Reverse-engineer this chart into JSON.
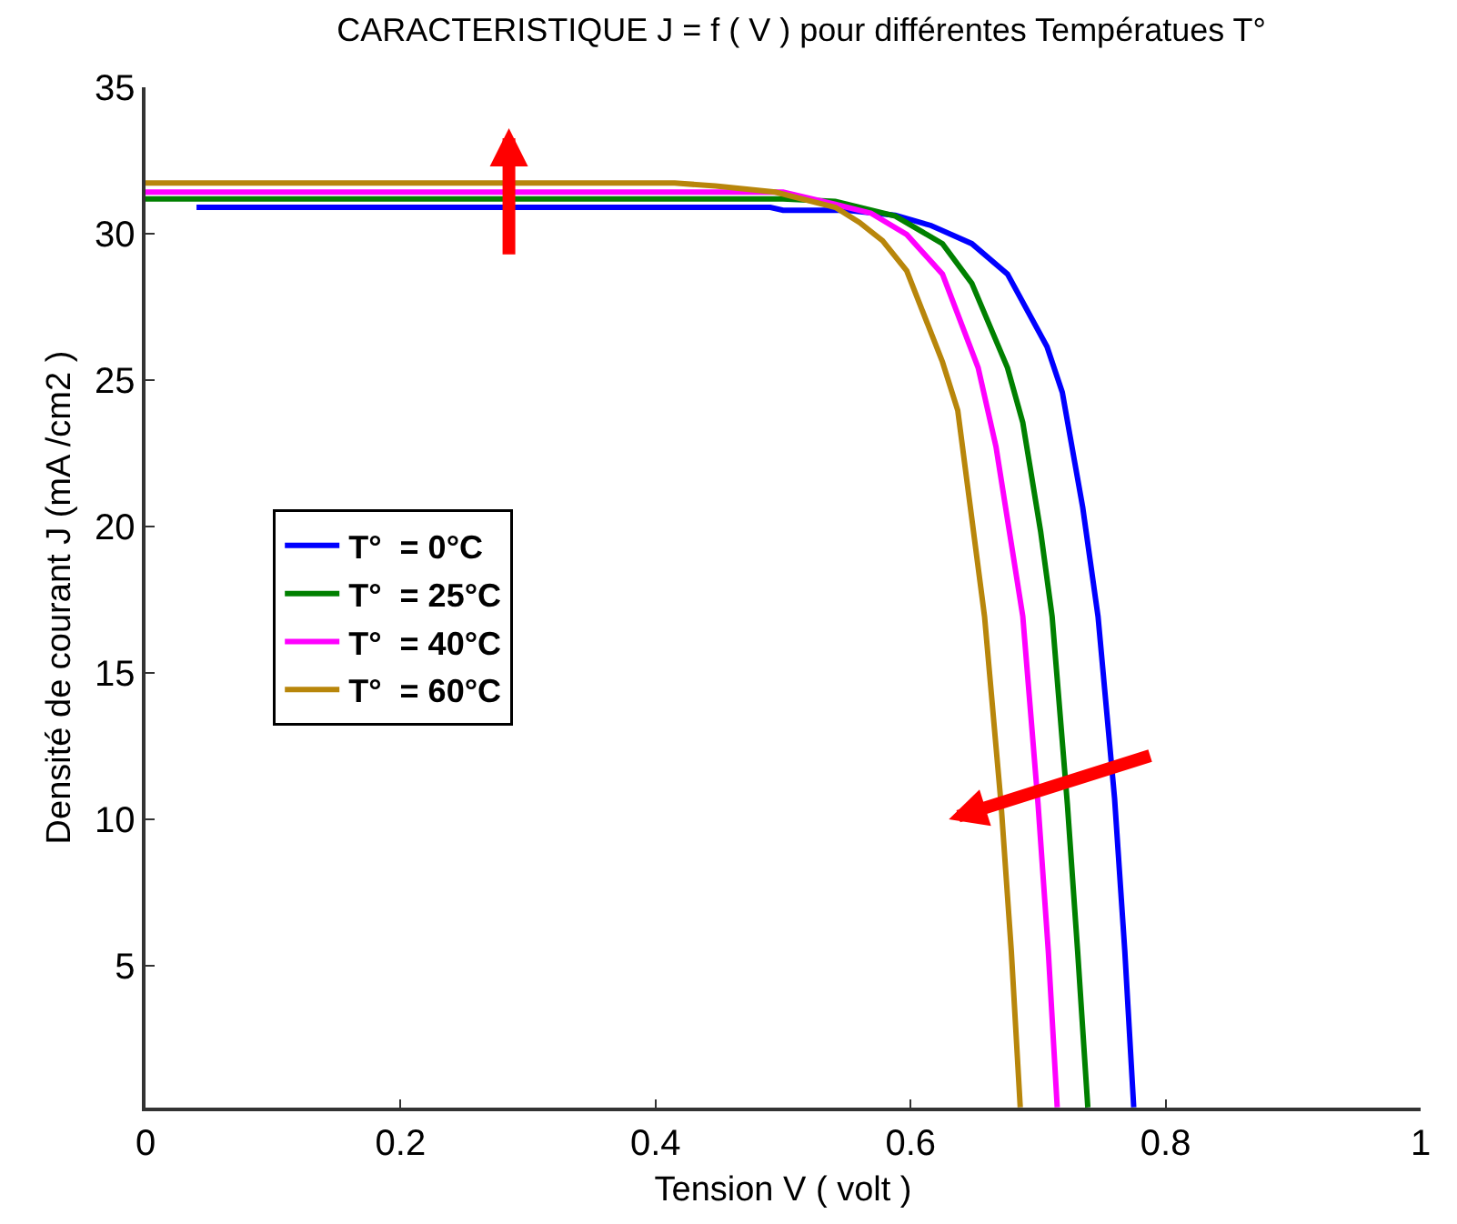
{
  "chart_data": {
    "type": "line",
    "title": "CARACTERISTIQUE J = f ( V ) pour différentes Températues T°",
    "xlabel": "Tension V ( volt )",
    "ylabel": "Densité de courant J (mA /cm2 )",
    "xlim": [
      0,
      1
    ],
    "xticks": [
      0,
      0.2,
      0.4,
      0.6,
      0.8,
      1
    ],
    "ylim": [
      0.15,
      35
    ],
    "yticks": [
      5,
      10,
      15,
      20,
      25,
      30,
      35
    ],
    "legend": "middle left",
    "marker": "none",
    "line_style": "solid",
    "series": [
      {
        "name": "T°  = 0°C",
        "color": "#0000ff",
        "x": [
          0.04,
          0.3,
          0.49,
          0.5,
          0.55,
          0.588,
          0.616,
          0.648,
          0.676,
          0.707,
          0.719,
          0.735,
          0.747,
          0.76,
          0.768,
          0.775
        ],
        "values": [
          30.9,
          30.9,
          30.9,
          30.8,
          30.8,
          30.63,
          30.28,
          29.66,
          28.62,
          26.14,
          24.58,
          20.65,
          16.93,
          10.7,
          5.5,
          0.16
        ]
      },
      {
        "name": "T°  = 25°C",
        "color": "#008000",
        "x": [
          0,
          0.3,
          0.5,
          0.541,
          0.588,
          0.625,
          0.648,
          0.676,
          0.688,
          0.702,
          0.711,
          0.723,
          0.731,
          0.739
        ],
        "values": [
          31.19,
          31.19,
          31.19,
          31.1,
          30.6,
          29.66,
          28.31,
          25.42,
          23.55,
          19.83,
          16.93,
          10.5,
          5.5,
          0.16
        ]
      },
      {
        "name": "T°  = 40°C",
        "color": "#ff00ff",
        "x": [
          0,
          0.3,
          0.5,
          0.541,
          0.569,
          0.597,
          0.625,
          0.653,
          0.667,
          0.688,
          0.7,
          0.708,
          0.715
        ],
        "values": [
          31.42,
          31.42,
          31.42,
          31.0,
          30.7,
          29.97,
          28.62,
          25.42,
          22.72,
          16.93,
          10.5,
          5.5,
          0.16
        ]
      },
      {
        "name": "T°  = 60°C",
        "color": "#b8860b",
        "x": [
          0,
          0.3,
          0.415,
          0.447,
          0.494,
          0.541,
          0.56,
          0.578,
          0.597,
          0.625,
          0.637,
          0.658,
          0.671,
          0.679,
          0.686
        ],
        "values": [
          31.73,
          31.73,
          31.73,
          31.63,
          31.42,
          30.9,
          30.38,
          29.76,
          28.73,
          25.62,
          23.96,
          16.93,
          10.5,
          5.5,
          0.16
        ]
      }
    ]
  }
}
